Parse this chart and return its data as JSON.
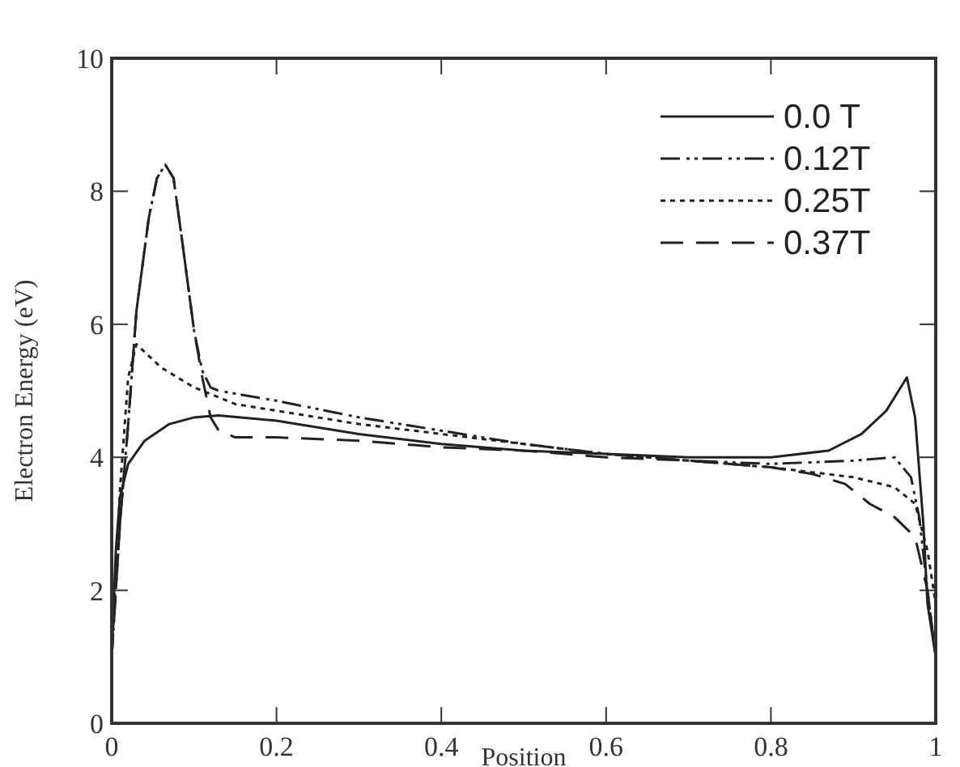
{
  "chart_data": {
    "type": "line",
    "xlabel": "Position",
    "ylabel": "Electron Energy (eV)",
    "xlim": [
      0,
      1
    ],
    "ylim": [
      0,
      10
    ],
    "xticks": [
      0,
      0.2,
      0.4,
      0.6,
      0.8,
      1
    ],
    "yticks": [
      0,
      2,
      4,
      6,
      8,
      10
    ],
    "grid": false,
    "legend": "top right",
    "series": [
      {
        "name": "0.0 T",
        "color": "#222222",
        "line_style": "solid",
        "x": [
          0,
          0.005,
          0.01,
          0.02,
          0.04,
          0.07,
          0.1,
          0.13,
          0.2,
          0.3,
          0.4,
          0.5,
          0.6,
          0.7,
          0.8,
          0.87,
          0.91,
          0.94,
          0.965,
          0.975,
          0.985,
          0.99,
          1
        ],
        "values": [
          1,
          2.6,
          3.4,
          3.9,
          4.25,
          4.5,
          4.6,
          4.63,
          4.55,
          4.35,
          4.2,
          4.1,
          4.05,
          4.0,
          4.0,
          4.1,
          4.35,
          4.7,
          5.2,
          4.6,
          3.0,
          1.8,
          1
        ]
      },
      {
        "name": "0.12T",
        "color": "#222222",
        "line_style": "dashdot",
        "x": [
          0,
          0.01,
          0.02,
          0.03,
          0.045,
          0.055,
          0.065,
          0.075,
          0.085,
          0.1,
          0.11,
          0.12,
          0.13,
          0.2,
          0.3,
          0.4,
          0.5,
          0.6,
          0.7,
          0.8,
          0.9,
          0.95,
          0.97,
          0.98,
          0.99,
          1
        ],
        "values": [
          1,
          3,
          4.5,
          6.2,
          7.6,
          8.2,
          8.4,
          8.2,
          7.3,
          5.9,
          5.3,
          5.05,
          5.0,
          4.85,
          4.6,
          4.4,
          4.2,
          4.05,
          3.95,
          3.9,
          3.95,
          4.0,
          3.7,
          3.1,
          2,
          1
        ]
      },
      {
        "name": "0.25T",
        "color": "#222222",
        "line_style": "dotted",
        "x": [
          0,
          0.01,
          0.02,
          0.03,
          0.06,
          0.1,
          0.15,
          0.2,
          0.3,
          0.4,
          0.5,
          0.6,
          0.7,
          0.8,
          0.9,
          0.95,
          0.975,
          0.99,
          1
        ],
        "values": [
          1,
          3.5,
          5.2,
          5.7,
          5.35,
          5.05,
          4.8,
          4.7,
          4.5,
          4.35,
          4.2,
          4.05,
          3.95,
          3.85,
          3.7,
          3.55,
          3.3,
          2.6,
          1.8
        ]
      },
      {
        "name": "0.37T",
        "color": "#222222",
        "line_style": "dashed",
        "x": [
          0,
          0.01,
          0.02,
          0.03,
          0.045,
          0.055,
          0.065,
          0.075,
          0.085,
          0.1,
          0.11,
          0.12,
          0.13,
          0.15,
          0.2,
          0.3,
          0.4,
          0.5,
          0.6,
          0.7,
          0.8,
          0.85,
          0.89,
          0.92,
          0.95,
          0.975,
          0.99,
          1
        ],
        "values": [
          1,
          3,
          4.5,
          6.2,
          7.6,
          8.2,
          8.4,
          8.2,
          7.3,
          5.9,
          5.2,
          4.6,
          4.4,
          4.3,
          4.3,
          4.25,
          4.15,
          4.1,
          4.0,
          3.95,
          3.85,
          3.75,
          3.6,
          3.3,
          3.1,
          2.8,
          2,
          1
        ]
      }
    ]
  }
}
